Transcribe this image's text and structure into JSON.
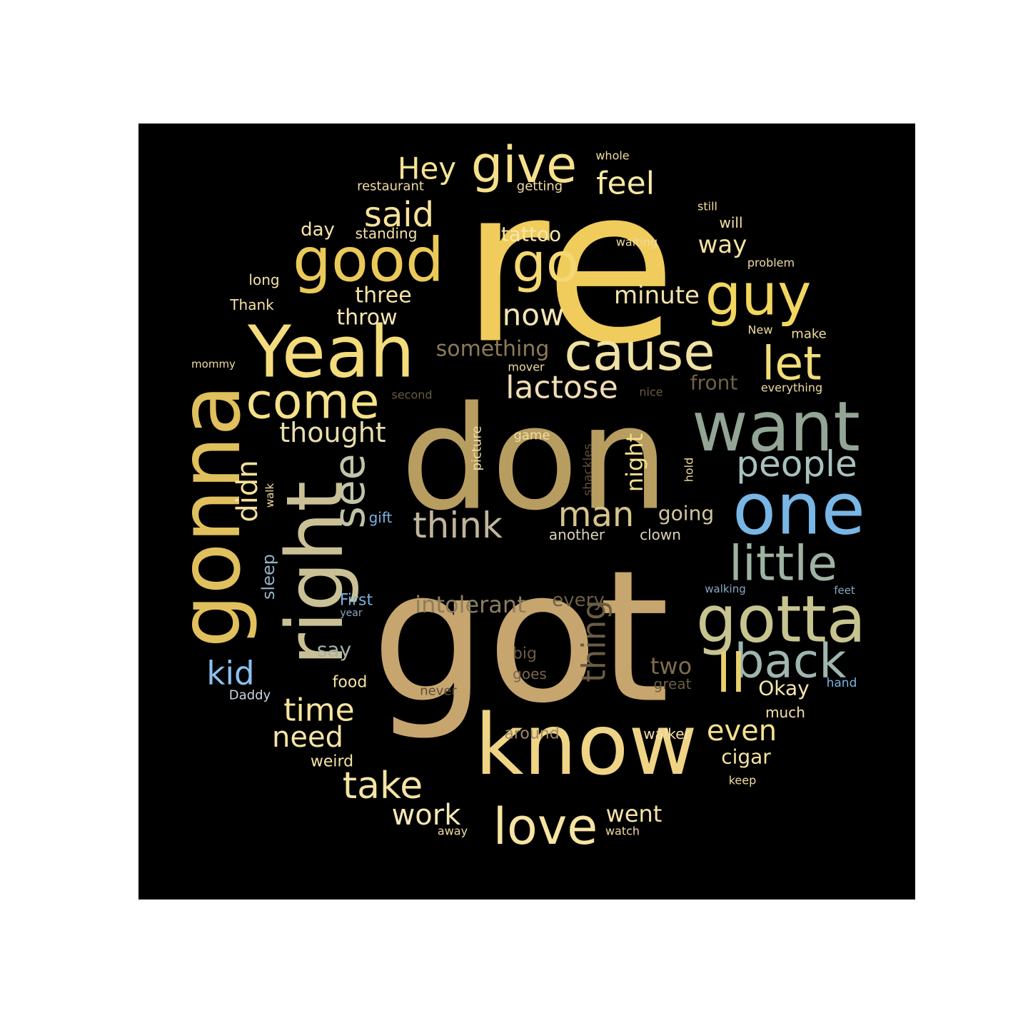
{
  "cloud": {
    "words": [
      {
        "text": "re",
        "color": "#f0cc5c"
      },
      {
        "text": "got",
        "color": "#c7a56e"
      },
      {
        "text": "don",
        "color": "#b89d60"
      },
      {
        "text": "know",
        "color": "#efd485"
      },
      {
        "text": "Yeah",
        "color": "#f4dc7c"
      },
      {
        "text": "right",
        "color": "#c9c195"
      },
      {
        "text": "gonna",
        "color": "#e0bf5d"
      },
      {
        "text": "want",
        "color": "#93a594"
      },
      {
        "text": "one",
        "color": "#78b6e6"
      },
      {
        "text": "gotta",
        "color": "#c7c490"
      },
      {
        "text": "good",
        "color": "#ebc958"
      },
      {
        "text": "cause",
        "color": "#f0e2a2"
      },
      {
        "text": "guy",
        "color": "#f2d65f"
      },
      {
        "text": "give",
        "color": "#f6e08a"
      },
      {
        "text": "go",
        "color": "#f4d872"
      },
      {
        "text": "come",
        "color": "#f5e187"
      },
      {
        "text": "little",
        "color": "#9fb3a2"
      },
      {
        "text": "back",
        "color": "#9fb6b0"
      },
      {
        "text": "love",
        "color": "#f7e4a2"
      },
      {
        "text": "ll",
        "color": "#e9d06e"
      },
      {
        "text": "see",
        "color": "#c1c3a8"
      },
      {
        "text": "think",
        "color": "#c0b59c"
      },
      {
        "text": "let",
        "color": "#f3dd7a"
      },
      {
        "text": "people",
        "color": "#a9c1be"
      },
      {
        "text": "man",
        "color": "#d6c489"
      },
      {
        "text": "lactose",
        "color": "#f2deb4"
      },
      {
        "text": "now",
        "color": "#f5e6b6"
      },
      {
        "text": "take",
        "color": "#f4e3a4"
      },
      {
        "text": "said",
        "color": "#f6e39a"
      },
      {
        "text": "thing",
        "color": "#6b5d42"
      },
      {
        "text": "feel",
        "color": "#f7e8a2"
      },
      {
        "text": "Hey",
        "color": "#f6e294"
      },
      {
        "text": "thought",
        "color": "#e8deae"
      },
      {
        "text": "didn",
        "color": "#f5e19a"
      },
      {
        "text": "time",
        "color": "#f6e59b"
      },
      {
        "text": "even",
        "color": "#f5e090"
      },
      {
        "text": "work",
        "color": "#f6e8b6"
      },
      {
        "text": "kid",
        "color": "#8cc0ef"
      },
      {
        "text": "need",
        "color": "#f6e5a6"
      },
      {
        "text": "went",
        "color": "#f5e4a6"
      },
      {
        "text": "way",
        "color": "#f6e2a0"
      },
      {
        "text": "minute",
        "color": "#f5e3a8"
      },
      {
        "text": "something",
        "color": "#8c7b58"
      },
      {
        "text": "intolerant",
        "color": "#8c7d5e"
      },
      {
        "text": "night",
        "color": "#f3df8e"
      },
      {
        "text": "Okay",
        "color": "#f6e6ac"
      },
      {
        "text": "three",
        "color": "#f6e4a6"
      },
      {
        "text": "throw",
        "color": "#f6e6b0"
      },
      {
        "text": "tattoo",
        "color": "#f6e6b0"
      },
      {
        "text": "going",
        "color": "#d3c8a0"
      },
      {
        "text": "front",
        "color": "#6e6247"
      },
      {
        "text": "two",
        "color": "#7e6d4d"
      },
      {
        "text": "cigar",
        "color": "#f5e2a4"
      },
      {
        "text": "say",
        "color": "#a5b4ad"
      },
      {
        "text": "sleep",
        "color": "#93b0c2"
      },
      {
        "text": "day",
        "color": "#f5e4a8"
      },
      {
        "text": "every",
        "color": "#6c5e44"
      },
      {
        "text": "First",
        "color": "#7bb2e2"
      },
      {
        "text": "food",
        "color": "#f5e3a2"
      },
      {
        "text": "weird",
        "color": "#f5e3a2"
      },
      {
        "text": "around",
        "color": "#a08868"
      },
      {
        "text": "another",
        "color": "#d9d2bb"
      },
      {
        "text": "clown",
        "color": "#d9d2bb"
      },
      {
        "text": "standing",
        "color": "#f3e1a6"
      },
      {
        "text": "long",
        "color": "#f3e1a6"
      },
      {
        "text": "Thank",
        "color": "#f3e1a6"
      },
      {
        "text": "will",
        "color": "#f3e1a6"
      },
      {
        "text": "walker",
        "color": "#f3e1a6"
      },
      {
        "text": "much",
        "color": "#f3e1a6"
      },
      {
        "text": "picture",
        "color": "#f0dea6"
      },
      {
        "text": "shackles",
        "color": "#5c503a"
      },
      {
        "text": "hold",
        "color": "#f0dca0"
      },
      {
        "text": "restaurant",
        "color": "#f0dca0"
      },
      {
        "text": "getting",
        "color": "#f0dca0"
      },
      {
        "text": "whole",
        "color": "#f0dca0"
      },
      {
        "text": "still",
        "color": "#f0dca0"
      },
      {
        "text": "waiting",
        "color": "#f0dca0"
      },
      {
        "text": "problem",
        "color": "#f0dca0"
      },
      {
        "text": "New",
        "color": "#f0dca0"
      },
      {
        "text": "make",
        "color": "#f0dca0"
      },
      {
        "text": "mover",
        "color": "#f0dca0"
      },
      {
        "text": "nice",
        "color": "#6a5c42"
      },
      {
        "text": "everything",
        "color": "#f0dca0"
      },
      {
        "text": "second",
        "color": "#6a5c42"
      },
      {
        "text": "game",
        "color": "#f0dca0"
      },
      {
        "text": "gift",
        "color": "#7bb2e2"
      },
      {
        "text": "walk",
        "color": "#f0dca0"
      },
      {
        "text": "walking",
        "color": "#8aa6c0"
      },
      {
        "text": "feet",
        "color": "#8aa6c0"
      },
      {
        "text": "year",
        "color": "#8aa6c0"
      },
      {
        "text": "big",
        "color": "#6a5c42"
      },
      {
        "text": "goes",
        "color": "#7a6450"
      },
      {
        "text": "never",
        "color": "#5c503a"
      },
      {
        "text": "great",
        "color": "#6a5c42"
      },
      {
        "text": "hand",
        "color": "#7bb2e2"
      },
      {
        "text": "Daddy",
        "color": "#c9d6df"
      },
      {
        "text": "keep",
        "color": "#f0dca0"
      },
      {
        "text": "away",
        "color": "#f0dca0"
      },
      {
        "text": "watch",
        "color": "#f0dca0"
      },
      {
        "text": "mommy",
        "color": "#f0dca0"
      }
    ]
  }
}
